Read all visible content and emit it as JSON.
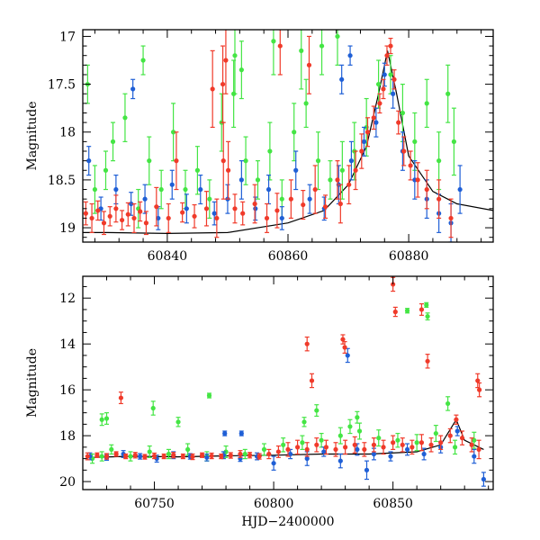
{
  "colors": {
    "blue": "#1f5fd6",
    "green": "#44e544",
    "red": "#f03a2a",
    "model": "#000000"
  },
  "chart_data": [
    {
      "type": "scatter",
      "xlabel": "",
      "ylabel": "Magnitude",
      "xlim": [
        60826,
        60894
      ],
      "ylim": [
        19.15,
        16.93
      ],
      "y_inverted": true,
      "x_ticks": [
        "60840",
        "60860",
        "60880"
      ],
      "y_ticks": [
        "17",
        "17.5",
        "18",
        "18.5",
        "19"
      ],
      "model_curve": {
        "x": [
          60826,
          60830,
          60840,
          60850,
          60860,
          60866,
          60870,
          60873,
          60875,
          60876.5,
          60878,
          60880,
          60884,
          60888,
          60894
        ],
        "y": [
          19.05,
          19.05,
          19.06,
          19.05,
          18.95,
          18.82,
          18.55,
          18.15,
          17.6,
          17.15,
          17.6,
          18.25,
          18.62,
          18.75,
          18.82
        ]
      },
      "series": [
        {
          "color": "red",
          "x": [
            60826.5,
            60827.5,
            60828.5,
            60829.5,
            60830.5,
            60831.5,
            60832.5,
            60833.5,
            60834.5,
            60835.5,
            60836.5,
            60838.2,
            60840.2,
            60842.5,
            60844.5,
            60846.5,
            60848.2,
            60849.3,
            60850.1,
            60851.2,
            60852.5,
            60854.5,
            60856.5,
            60858.2,
            60860.5,
            60862.5,
            60864.5,
            60866.2,
            60868.2,
            60870.1,
            60871.2,
            60872.2,
            60873.2,
            60874.2,
            60875.2,
            60875.8,
            60876.4,
            60877.0,
            60877.6,
            60878.3,
            60879.2,
            60880.3,
            60881.5,
            60883.0,
            60885.0,
            60887.0,
            60841.5,
            60849.2,
            60849.7,
            60858.7,
            60863.5,
            60847.5,
            60868.7
          ],
          "y": [
            18.85,
            18.9,
            18.82,
            18.95,
            18.88,
            18.8,
            18.92,
            18.86,
            18.9,
            18.83,
            18.95,
            18.78,
            18.9,
            18.84,
            18.88,
            18.8,
            18.9,
            18.3,
            18.4,
            18.8,
            18.85,
            18.75,
            18.9,
            18.82,
            18.7,
            18.76,
            18.6,
            18.78,
            18.5,
            18.55,
            18.4,
            18.2,
            18.0,
            17.85,
            17.7,
            17.55,
            17.2,
            17.1,
            17.45,
            17.9,
            18.2,
            18.35,
            18.5,
            18.6,
            18.7,
            18.9,
            18.3,
            17.5,
            17.25,
            17.1,
            17.3,
            17.55,
            18.75
          ],
          "err": [
            0.12,
            0.15,
            0.1,
            0.12,
            0.1,
            0.14,
            0.1,
            0.12,
            0.15,
            0.1,
            0.12,
            0.2,
            0.15,
            0.1,
            0.12,
            0.18,
            0.2,
            0.4,
            0.3,
            0.15,
            0.12,
            0.2,
            0.15,
            0.18,
            0.2,
            0.15,
            0.25,
            0.12,
            0.2,
            0.2,
            0.2,
            0.18,
            0.15,
            0.12,
            0.1,
            0.1,
            0.1,
            0.08,
            0.1,
            0.12,
            0.15,
            0.15,
            0.18,
            0.2,
            0.2,
            0.2,
            0.3,
            0.4,
            0.35,
            0.3,
            0.3,
            0.4,
            0.2
          ]
        },
        {
          "color": "green",
          "x": [
            60826.8,
            60828.0,
            60829.8,
            60831.0,
            60833.0,
            60835.2,
            60837.0,
            60839.0,
            60841.0,
            60843.0,
            60845.0,
            60847.0,
            60849.0,
            60851.0,
            60853.0,
            60855.0,
            60857.0,
            60859.0,
            60861.0,
            60863.0,
            60865.0,
            60867.0,
            60869.0,
            60871.0,
            60873.0,
            60875.0,
            60877.0,
            60879.0,
            60881.0,
            60883.0,
            60885.0,
            60887.5,
            60836.0,
            60851.2,
            60852.3,
            60857.6,
            60862.2,
            60865.6,
            60868.2,
            60886.5
          ],
          "y": [
            17.5,
            18.6,
            18.4,
            18.1,
            17.85,
            18.8,
            18.3,
            18.6,
            18.0,
            18.6,
            18.4,
            18.7,
            17.9,
            17.6,
            18.3,
            18.5,
            18.2,
            18.7,
            18.0,
            17.7,
            18.3,
            18.5,
            18.4,
            18.2,
            17.95,
            17.5,
            17.4,
            17.8,
            18.1,
            17.7,
            18.3,
            18.1,
            17.25,
            17.2,
            17.35,
            17.05,
            17.15,
            17.1,
            17.0,
            17.6
          ],
          "err": [
            0.2,
            0.25,
            0.2,
            0.2,
            0.25,
            0.2,
            0.25,
            0.2,
            0.3,
            0.2,
            0.25,
            0.2,
            0.3,
            0.35,
            0.25,
            0.2,
            0.3,
            0.2,
            0.3,
            0.25,
            0.3,
            0.2,
            0.3,
            0.3,
            0.3,
            0.25,
            0.2,
            0.3,
            0.3,
            0.25,
            0.3,
            0.35,
            0.15,
            0.4,
            0.3,
            0.35,
            0.4,
            0.3,
            0.3,
            0.3
          ]
        },
        {
          "color": "blue",
          "x": [
            60827.0,
            60829.0,
            60831.5,
            60834.0,
            60836.3,
            60838.5,
            60840.8,
            60843.2,
            60845.5,
            60847.8,
            60850.0,
            60852.3,
            60854.6,
            60856.8,
            60859.0,
            60861.3,
            60863.6,
            60866.0,
            60868.4,
            60870.5,
            60872.6,
            60874.6,
            60876.0,
            60877.4,
            60879.0,
            60881.0,
            60883.0,
            60885.0,
            60887.0,
            60888.5,
            60834.3,
            60870.3,
            60868.9
          ],
          "y": [
            18.3,
            18.8,
            18.6,
            18.75,
            18.7,
            18.9,
            18.55,
            18.8,
            18.6,
            18.85,
            18.7,
            18.5,
            18.8,
            18.6,
            18.9,
            18.4,
            18.7,
            18.8,
            18.55,
            18.3,
            18.1,
            17.9,
            17.4,
            17.6,
            18.2,
            18.5,
            18.7,
            18.85,
            18.95,
            18.6,
            17.55,
            17.2,
            17.45
          ],
          "err": [
            0.15,
            0.12,
            0.15,
            0.12,
            0.15,
            0.12,
            0.15,
            0.15,
            0.15,
            0.12,
            0.15,
            0.2,
            0.12,
            0.15,
            0.12,
            0.2,
            0.15,
            0.12,
            0.2,
            0.2,
            0.15,
            0.15,
            0.12,
            0.15,
            0.2,
            0.2,
            0.2,
            0.2,
            0.2,
            0.25,
            0.1,
            0.1,
            0.15
          ]
        }
      ]
    },
    {
      "type": "scatter",
      "xlabel": "HJD−2400000",
      "ylabel": "Magnitude",
      "xlim": [
        60720,
        60892
      ],
      "ylim": [
        20.35,
        11.05
      ],
      "y_inverted": true,
      "x_ticks": [
        "60750",
        "60800",
        "60850"
      ],
      "y_ticks": [
        "12",
        "14",
        "16",
        "18",
        "20"
      ],
      "model_curve": {
        "x": [
          60722,
          60740,
          60760,
          60780,
          60800,
          60820,
          60840,
          60860,
          60870,
          60876.5,
          60880,
          60888
        ],
        "y": [
          18.95,
          18.9,
          18.92,
          18.88,
          18.85,
          18.8,
          18.8,
          18.7,
          18.4,
          17.3,
          18.2,
          18.6
        ]
      },
      "series": [
        {
          "color": "red",
          "x": [
            60722,
            60726,
            60730,
            60734,
            60738,
            60742,
            60746,
            60750,
            60754,
            60758,
            60762,
            60766,
            60770,
            60774,
            60778,
            60782,
            60786,
            60790,
            60794,
            60798,
            60802,
            60806,
            60810,
            60814,
            60818,
            60822,
            60826,
            60830,
            60834,
            60838,
            60842,
            60846,
            60850,
            60854,
            60858,
            60862,
            60866,
            60870,
            60874,
            60876.5,
            60879,
            60883,
            60886,
            60736,
            60814,
            60816,
            60829,
            60829.8,
            60850,
            60851,
            60862,
            60864.5,
            60885.5,
            60886.2
          ],
          "y": [
            18.9,
            18.85,
            18.9,
            18.8,
            18.9,
            18.85,
            18.92,
            18.88,
            18.9,
            18.85,
            18.9,
            18.92,
            18.85,
            18.88,
            18.9,
            18.86,
            18.8,
            18.85,
            18.9,
            18.8,
            18.7,
            18.6,
            18.5,
            18.6,
            18.4,
            18.5,
            18.6,
            18.5,
            18.4,
            18.6,
            18.4,
            18.5,
            18.3,
            18.4,
            18.5,
            18.3,
            18.4,
            18.3,
            18.0,
            17.3,
            18.1,
            18.4,
            18.6,
            16.35,
            14.0,
            15.6,
            13.8,
            14.15,
            11.4,
            12.6,
            12.5,
            14.75,
            15.6,
            16.0
          ],
          "err": [
            0.15,
            0.1,
            0.12,
            0.1,
            0.1,
            0.12,
            0.1,
            0.12,
            0.1,
            0.12,
            0.1,
            0.12,
            0.1,
            0.12,
            0.1,
            0.12,
            0.15,
            0.12,
            0.12,
            0.2,
            0.25,
            0.3,
            0.3,
            0.3,
            0.3,
            0.3,
            0.3,
            0.3,
            0.35,
            0.3,
            0.3,
            0.3,
            0.3,
            0.3,
            0.3,
            0.35,
            0.3,
            0.3,
            0.3,
            0.2,
            0.3,
            0.3,
            0.4,
            0.25,
            0.3,
            0.3,
            0.2,
            0.25,
            0.3,
            0.2,
            0.25,
            0.3,
            0.3,
            0.3
          ]
        },
        {
          "color": "green",
          "x": [
            60724,
            60728,
            60732,
            60740,
            60748,
            60756,
            60764,
            60772,
            60780,
            60788,
            60796,
            60804,
            60812,
            60820,
            60828,
            60836,
            60844,
            60852,
            60860,
            60868,
            60876,
            60884,
            60728,
            60730,
            60749.5,
            60760,
            60773,
            60832,
            60856,
            60864,
            60864.5,
            60812.8,
            60835,
            60818,
            60873
          ],
          "y": [
            19.0,
            18.9,
            18.6,
            18.9,
            18.7,
            18.8,
            18.6,
            18.9,
            18.7,
            18.8,
            18.6,
            18.4,
            18.3,
            18.2,
            18.0,
            17.8,
            18.1,
            18.2,
            18.3,
            17.9,
            18.5,
            18.2,
            17.3,
            17.25,
            16.8,
            17.4,
            16.25,
            17.6,
            12.55,
            12.3,
            12.8,
            17.4,
            17.2,
            16.9,
            16.6
          ],
          "err": [
            0.2,
            0.2,
            0.2,
            0.2,
            0.25,
            0.2,
            0.25,
            0.2,
            0.25,
            0.2,
            0.25,
            0.3,
            0.3,
            0.3,
            0.35,
            0.35,
            0.35,
            0.3,
            0.35,
            0.35,
            0.3,
            0.35,
            0.25,
            0.25,
            0.3,
            0.2,
            0.1,
            0.3,
            0.1,
            0.1,
            0.15,
            0.2,
            0.25,
            0.25,
            0.3
          ]
        },
        {
          "color": "blue",
          "x": [
            60723,
            60730,
            60737,
            60744,
            60751,
            60758,
            60765,
            60772,
            60779,
            60786,
            60793,
            60800,
            60807,
            60814,
            60821,
            60828,
            60835,
            60839,
            60842,
            60849,
            60856,
            60863,
            60870,
            60877,
            60884,
            60888,
            60831,
            60779.5,
            60786.5
          ],
          "y": [
            18.9,
            18.95,
            18.8,
            18.9,
            19.0,
            18.85,
            18.9,
            18.95,
            18.85,
            19.0,
            18.9,
            19.2,
            18.8,
            19.0,
            18.7,
            19.1,
            18.6,
            19.5,
            18.8,
            18.9,
            18.6,
            18.8,
            18.5,
            17.8,
            18.9,
            19.9,
            14.5,
            17.9,
            17.9
          ],
          "err": [
            0.15,
            0.12,
            0.15,
            0.12,
            0.15,
            0.15,
            0.12,
            0.15,
            0.15,
            0.12,
            0.15,
            0.3,
            0.2,
            0.3,
            0.2,
            0.3,
            0.25,
            0.4,
            0.25,
            0.2,
            0.25,
            0.25,
            0.25,
            0.2,
            0.3,
            0.3,
            0.3,
            0.1,
            0.1
          ]
        }
      ]
    }
  ]
}
